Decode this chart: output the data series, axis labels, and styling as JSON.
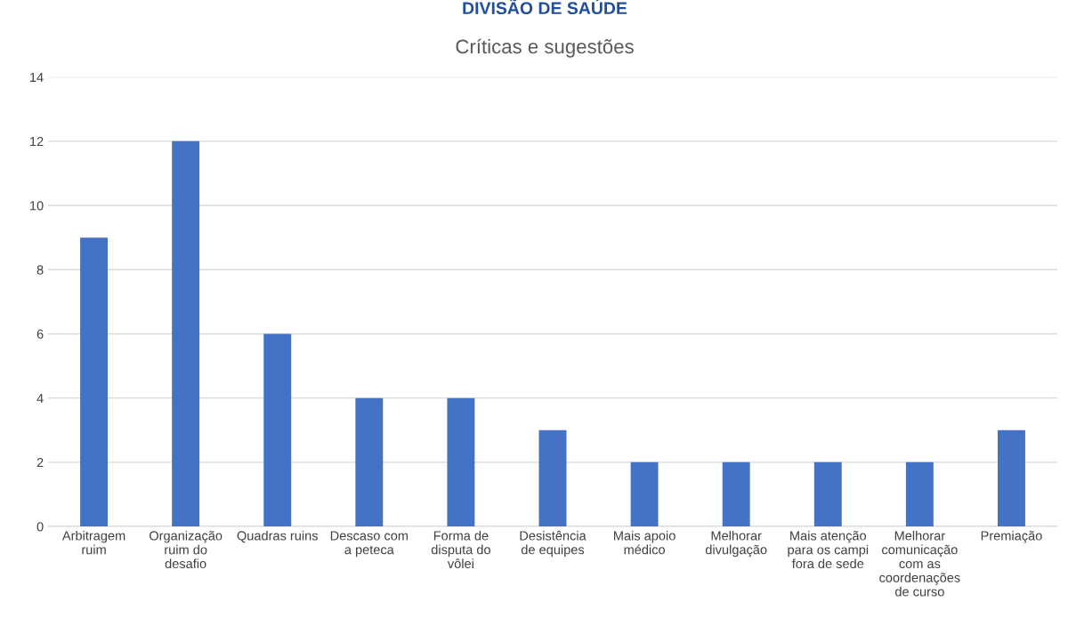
{
  "chart_data": {
    "type": "bar",
    "title": "Críticas e sugestões",
    "annotations": [
      "DIVISÃO DE SAÚDE"
    ],
    "categories": [
      "Arbitragem\nruim",
      "Organização\nruim do\ndesafio",
      "Quadras ruins",
      "Descaso com\na peteca",
      "Forma de\ndisputa do\nvôlei",
      "Desistência\nde equipes",
      "Mais apoio\nmédico",
      "Melhorar\ndivulgação",
      "Mais atenção\npara os campi\nfora de sede",
      "Melhorar\ncomunicação\ncom as\ncoordenações\nde curso",
      "Premiação"
    ],
    "values": [
      9,
      12,
      6,
      4,
      4,
      3,
      2,
      2,
      2,
      2,
      3
    ],
    "color": "#4472c4",
    "ylim": [
      0,
      14
    ],
    "yticks": [
      0,
      2,
      4,
      6,
      8,
      10,
      12,
      14
    ],
    "grid": "y"
  }
}
